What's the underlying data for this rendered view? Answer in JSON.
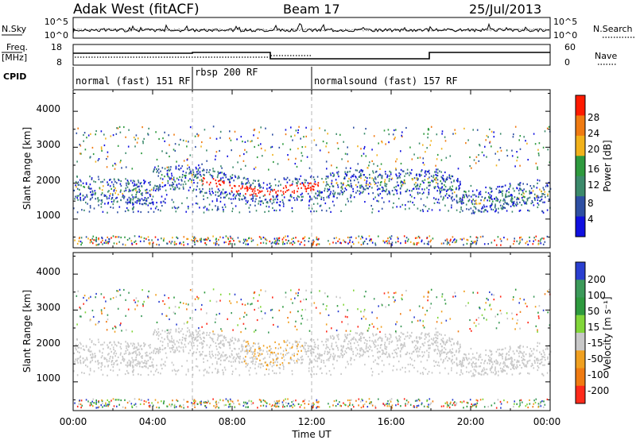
{
  "header": {
    "station": "Adak West (fitACF)",
    "beam": "Beam 17",
    "date": "25/Jul/2013"
  },
  "panels": {
    "noise": {
      "left_label": "N.Sky",
      "left_ticks": [
        "10^5",
        "10^0"
      ],
      "right_label": "N.Search",
      "right_ticks": [
        "10^5",
        "10^0"
      ]
    },
    "freq": {
      "left_label_1": "Freq.",
      "left_label_2": "[MHz]",
      "left_ticks": [
        "18",
        "8"
      ],
      "right_label": "Nave",
      "right_ticks": [
        "60",
        "0"
      ]
    },
    "cpid": {
      "label": "CPID",
      "modes": [
        {
          "label": "normal (fast) 151 RF",
          "start_hour": 0
        },
        {
          "label": "rbsp 200 RF",
          "start_hour": 6
        },
        {
          "label": "normalsound (fast) 157 RF",
          "start_hour": 12
        }
      ]
    }
  },
  "chart_data": [
    {
      "type": "heatmap",
      "ylabel": "Slant Range [km]",
      "yticks": [
        "1000",
        "2000",
        "3000",
        "4000"
      ],
      "ylim": [
        200,
        4600
      ],
      "xlim_hours": [
        0,
        24
      ],
      "colorbar": {
        "label": "Power [dB]",
        "ticks": [
          "4",
          "8",
          "12",
          "16",
          "20",
          "24",
          "28"
        ],
        "colors": [
          "#1010e0",
          "#2e4fa3",
          "#3c8a6b",
          "#2e9a3e",
          "#f2b21b",
          "#f07b12",
          "#ff1a00"
        ]
      }
    },
    {
      "type": "heatmap",
      "ylabel": "Slant Range [km]",
      "yticks": [
        "1000",
        "2000",
        "3000",
        "4000"
      ],
      "ylim": [
        200,
        4600
      ],
      "xlim_hours": [
        0,
        24
      ],
      "colorbar": {
        "label": "Velocity [m s⁻¹]",
        "ticks": [
          "200",
          "100",
          "50",
          "15",
          "-15",
          "-50",
          "-100",
          "-200"
        ],
        "colors": [
          "#2a3fd0",
          "#3c9a5a",
          "#2e9a3e",
          "#82d63a",
          "#c8c8c8",
          "#f0a020",
          "#f07b12",
          "#ff2a1a"
        ]
      }
    }
  ],
  "xaxis": {
    "ticks": [
      "00:00",
      "04:00",
      "08:00",
      "12:00",
      "16:00",
      "20:00",
      "00:00"
    ],
    "label": "Time UT"
  }
}
